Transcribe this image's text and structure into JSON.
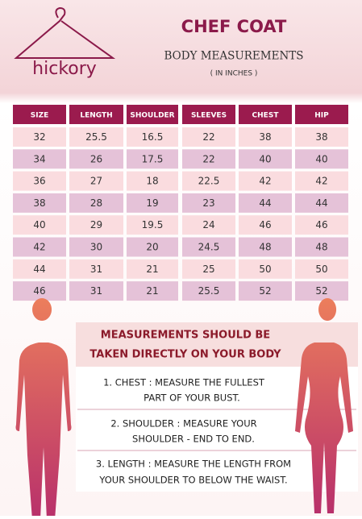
{
  "header": {
    "logo": "hickory",
    "title": "CHEF COAT",
    "subtitle": "BODY MEASUREMENTS",
    "unit_note": "( IN INCHES )"
  },
  "table": {
    "columns": [
      "SIZE",
      "LENGTH",
      "SHOULDER",
      "SLEEVES",
      "CHEST",
      "HIP"
    ],
    "rows": [
      [
        "32",
        "25.5",
        "16.5",
        "22",
        "38",
        "38"
      ],
      [
        "34",
        "26",
        "17.5",
        "22",
        "40",
        "40"
      ],
      [
        "36",
        "27",
        "18",
        "22.5",
        "42",
        "42"
      ],
      [
        "38",
        "28",
        "19",
        "23",
        "44",
        "44"
      ],
      [
        "40",
        "29",
        "19.5",
        "24",
        "46",
        "46"
      ],
      [
        "42",
        "30",
        "20",
        "24.5",
        "48",
        "48"
      ],
      [
        "44",
        "31",
        "21",
        "25",
        "50",
        "50"
      ],
      [
        "46",
        "31",
        "21",
        "25.5",
        "52",
        "52"
      ]
    ]
  },
  "notice": {
    "heading": [
      "MEASUREMENTS SHOULD BE",
      "TAKEN DIRECTLY ON YOUR BODY"
    ],
    "instructions": [
      {
        "lines": [
          "1.  CHEST : MEASURE THE FULLEST",
          "PART OF YOUR BUST."
        ]
      },
      {
        "lines": [
          "2.  SHOULDER : MEASURE YOUR",
          "SHOULDER - END TO END."
        ]
      },
      {
        "lines": [
          "3.  LENGTH : MEASURE THE LENGTH FROM",
          "YOUR SHOULDER TO BELOW THE WAIST."
        ]
      }
    ]
  }
}
